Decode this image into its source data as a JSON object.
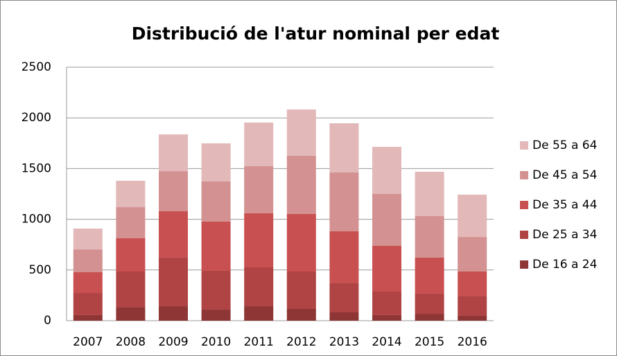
{
  "chart_data": {
    "type": "stacked_bar",
    "title": "Distribució de l'atur nominal per edat",
    "categories": [
      "2007",
      "2008",
      "2009",
      "2010",
      "2011",
      "2012",
      "2013",
      "2014",
      "2015",
      "2016"
    ],
    "series": [
      {
        "name": "De 16 a 24",
        "color": "#8e3535",
        "values": [
          55,
          130,
          143,
          109,
          143,
          116,
          82,
          55,
          68,
          48
        ]
      },
      {
        "name": "De 25 a 34",
        "color": "#b04343",
        "values": [
          218,
          355,
          479,
          383,
          383,
          369,
          287,
          232,
          198,
          191
        ]
      },
      {
        "name": "De 35 a 44",
        "color": "#c85050",
        "values": [
          205,
          328,
          457,
          485,
          533,
          567,
          512,
          451,
          356,
          246
        ]
      },
      {
        "name": "De 45 a 54",
        "color": "#d49191",
        "values": [
          225,
          307,
          396,
          396,
          464,
          574,
          581,
          512,
          410,
          341
        ]
      },
      {
        "name": "De 55 a 64",
        "color": "#e3b8b8",
        "values": [
          205,
          260,
          362,
          376,
          431,
          457,
          485,
          464,
          437,
          417
        ]
      }
    ],
    "ylim": [
      0,
      2500
    ],
    "yticks": [
      0,
      500,
      1000,
      1500,
      2000,
      2500
    ],
    "grid": true,
    "legend": "right"
  }
}
